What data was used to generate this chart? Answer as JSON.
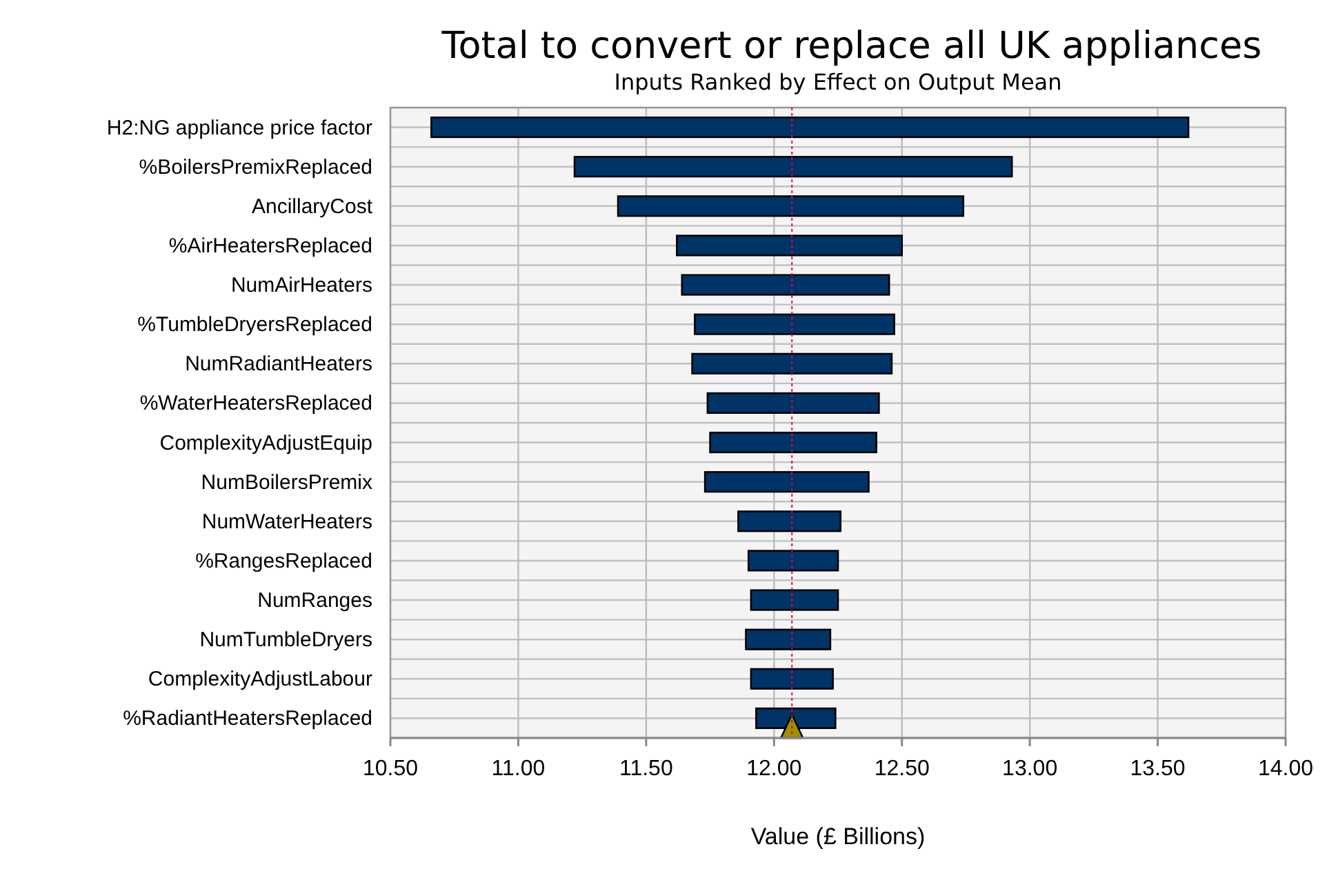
{
  "chart_data": {
    "type": "bar",
    "orientation": "horizontal",
    "title": "Total to convert or replace all UK appliances",
    "subtitle": "Inputs Ranked by Effect on Output Mean",
    "xlabel": "Value (£ Billions)",
    "categories": [
      "H2:NG appliance price factor",
      "%BoilersPremixReplaced",
      "AncillaryCost",
      "%AirHeatersReplaced",
      "NumAirHeaters",
      "%TumbleDryersReplaced",
      "NumRadiantHeaters",
      "%WaterHeatersReplaced",
      "ComplexityAdjustEquip",
      "NumBoilersPremix",
      "NumWaterHeaters",
      "%RangesReplaced",
      "NumRanges",
      "NumTumbleDryers",
      "ComplexityAdjustLabour",
      "%RadiantHeatersReplaced"
    ],
    "series": [
      {
        "color": "#003366",
        "base": [
          10.66,
          11.22,
          11.39,
          11.62,
          11.64,
          11.69,
          11.68,
          11.74,
          11.75,
          11.73,
          11.86,
          11.9,
          11.91,
          11.89,
          11.91,
          11.93
        ],
        "values": [
          2.96,
          1.71,
          1.35,
          0.88,
          0.81,
          0.78,
          0.78,
          0.67,
          0.65,
          0.64,
          0.4,
          0.35,
          0.34,
          0.33,
          0.32,
          0.31
        ]
      },
      {
        "type": "scatter",
        "color": "#9c9000",
        "values": [
          null,
          null,
          null,
          null,
          null,
          null,
          null,
          null,
          null,
          null,
          null,
          null,
          null,
          null,
          null,
          12.07
        ]
      }
    ],
    "xlim": [
      10.5,
      14.0
    ],
    "xticks": [
      {
        "value": 10.5,
        "label": "10.50"
      },
      {
        "value": 11,
        "label": "11.00"
      },
      {
        "value": 11.5,
        "label": "11.50"
      },
      {
        "value": 12,
        "label": "12.00"
      },
      {
        "value": 12.5,
        "label": "12.50"
      },
      {
        "value": 13,
        "label": "13.00"
      },
      {
        "value": 13.5,
        "label": "13.50"
      },
      {
        "value": 14,
        "label": "14.00"
      }
    ],
    "ref_lines": [
      {
        "axis": "x",
        "value": 12.07,
        "color": "#e0004d",
        "line_style": "dotted"
      }
    ],
    "marker": "triangle",
    "grid": true
  }
}
